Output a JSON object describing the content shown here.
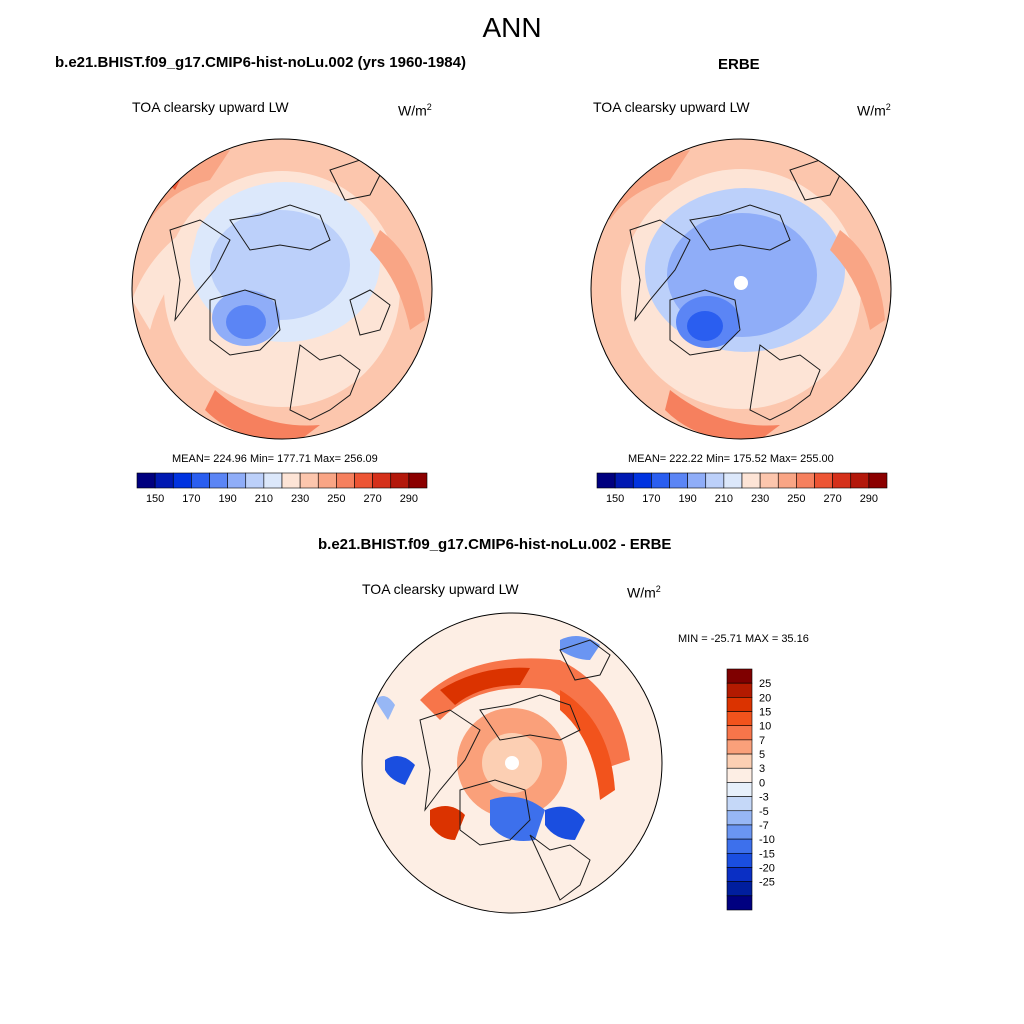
{
  "figure": {
    "title": "ANN"
  },
  "left_panel": {
    "case_title": "b.e21.BHIST.f09_g17.CMIP6-hist-noLu.002 (yrs 1960-1984)",
    "variable": "TOA clearsky upward LW",
    "units": "W/m",
    "units_exp": "2",
    "stats": "MEAN= 224.96  Min= 177.71  Max= 256.09"
  },
  "right_panel": {
    "case_title": "ERBE",
    "variable": "TOA clearsky upward LW",
    "units": "W/m",
    "units_exp": "2",
    "stats": "MEAN= 222.22  Min= 175.52  Max= 255.00"
  },
  "bottom_panel": {
    "case_title": "b.e21.BHIST.f09_g17.CMIP6-hist-noLu.002 - ERBE",
    "variable": "TOA clearsky upward LW",
    "units": "W/m",
    "units_exp": "2",
    "stats": "MIN = -25.71 MAX =  35.16"
  },
  "abs_colorbar": {
    "tick_labels": [
      "150",
      "170",
      "190",
      "210",
      "230",
      "250",
      "270",
      "290"
    ],
    "colors": [
      "#00007f",
      "#0019b2",
      "#0033e0",
      "#2a5ef0",
      "#5b85f5",
      "#8fadf8",
      "#bcd0fa",
      "#dce8fb",
      "#fde4d6",
      "#fcc6ad",
      "#f9a585",
      "#f6805e",
      "#ed5534",
      "#d5301a",
      "#b3180b",
      "#8b0000"
    ]
  },
  "diff_colorbar": {
    "tick_labels": [
      "25",
      "20",
      "15",
      "10",
      "7",
      "5",
      "3",
      "0",
      "-3",
      "-5",
      "-7",
      "-10",
      "-15",
      "-20",
      "-25"
    ],
    "colors": [
      "#7f0000",
      "#b31a00",
      "#db3300",
      "#f2531c",
      "#f7754a",
      "#faa07a",
      "#fccfb3",
      "#fdeee4",
      "#e7f0fb",
      "#c5d8f8",
      "#97b7f5",
      "#6a95f2",
      "#3d70ec",
      "#1a4ee0",
      "#0a2fc4",
      "#001e9e",
      "#000080"
    ]
  },
  "map_colors": {
    "warm1": "#fde4d6",
    "warm2": "#fcc6ad",
    "warm3": "#f9a585",
    "warm4": "#f6805e",
    "warm5": "#ed5534",
    "cool1": "#dce8fb",
    "cool2": "#bcd0fa",
    "cool3": "#8fadf8",
    "cool4": "#5b85f5",
    "cool5": "#2a5ef0",
    "coast": "#1a1a1a"
  }
}
